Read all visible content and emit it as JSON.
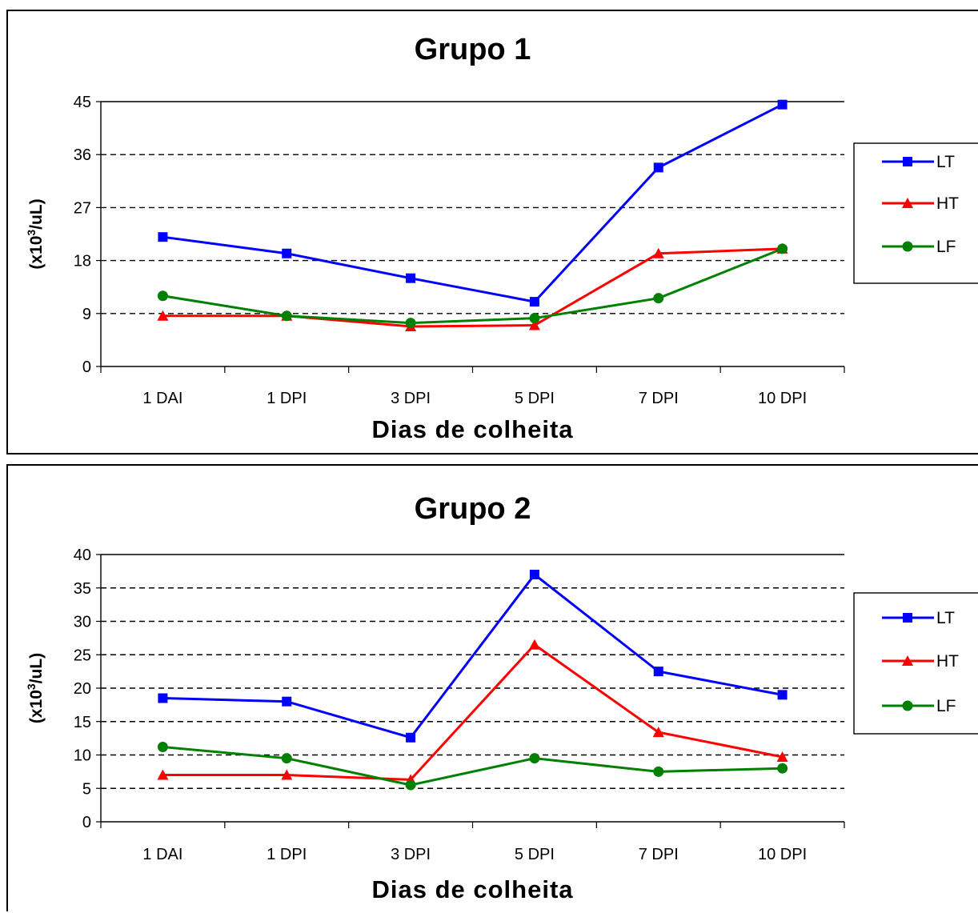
{
  "chart_data": [
    {
      "type": "line",
      "title": "Grupo 1",
      "xlabel": "Dias de colheita",
      "ylabel_prefix": "(x10",
      "ylabel_sup": "3",
      "ylabel_suffix": "/uL)",
      "categories": [
        "1 DAI",
        "1 DPI",
        "3 DPI",
        "5 DPI",
        "7 DPI",
        "10 DPI"
      ],
      "ylim": [
        0,
        45
      ],
      "yticks": [
        "0",
        "9",
        "18",
        "27",
        "36",
        "45"
      ],
      "grid": "dashed horizontal",
      "legend": "right",
      "series": [
        {
          "name": "LT",
          "color": "#0000ff",
          "marker": "square",
          "values": [
            22,
            19.2,
            15,
            11,
            33.8,
            44.5
          ]
        },
        {
          "name": "HT",
          "color": "#ff0000",
          "marker": "triangle",
          "values": [
            8.6,
            8.6,
            6.8,
            7,
            19.2,
            20
          ]
        },
        {
          "name": "LF",
          "color": "#008000",
          "marker": "circle",
          "values": [
            12,
            8.6,
            7.4,
            8.2,
            11.6,
            20
          ]
        }
      ]
    },
    {
      "type": "line",
      "title": "Grupo 2",
      "xlabel": "Dias de colheita",
      "ylabel_prefix": "(x10",
      "ylabel_sup": "3",
      "ylabel_suffix": "/uL)",
      "categories": [
        "1 DAI",
        "1 DPI",
        "3 DPI",
        "5 DPI",
        "7 DPI",
        "10 DPI"
      ],
      "ylim": [
        0,
        40
      ],
      "yticks": [
        "0",
        "5",
        "10",
        "15",
        "20",
        "25",
        "30",
        "35",
        "40"
      ],
      "grid": "dashed horizontal",
      "legend": "right",
      "series": [
        {
          "name": "LT",
          "color": "#0000ff",
          "marker": "square",
          "values": [
            18.5,
            18,
            12.6,
            37,
            22.5,
            19
          ]
        },
        {
          "name": "HT",
          "color": "#ff0000",
          "marker": "triangle",
          "values": [
            7,
            7,
            6.3,
            26.5,
            13.4,
            9.7
          ]
        },
        {
          "name": "LF",
          "color": "#008000",
          "marker": "circle",
          "values": [
            11.2,
            9.5,
            5.5,
            9.5,
            7.5,
            8
          ]
        }
      ]
    }
  ]
}
